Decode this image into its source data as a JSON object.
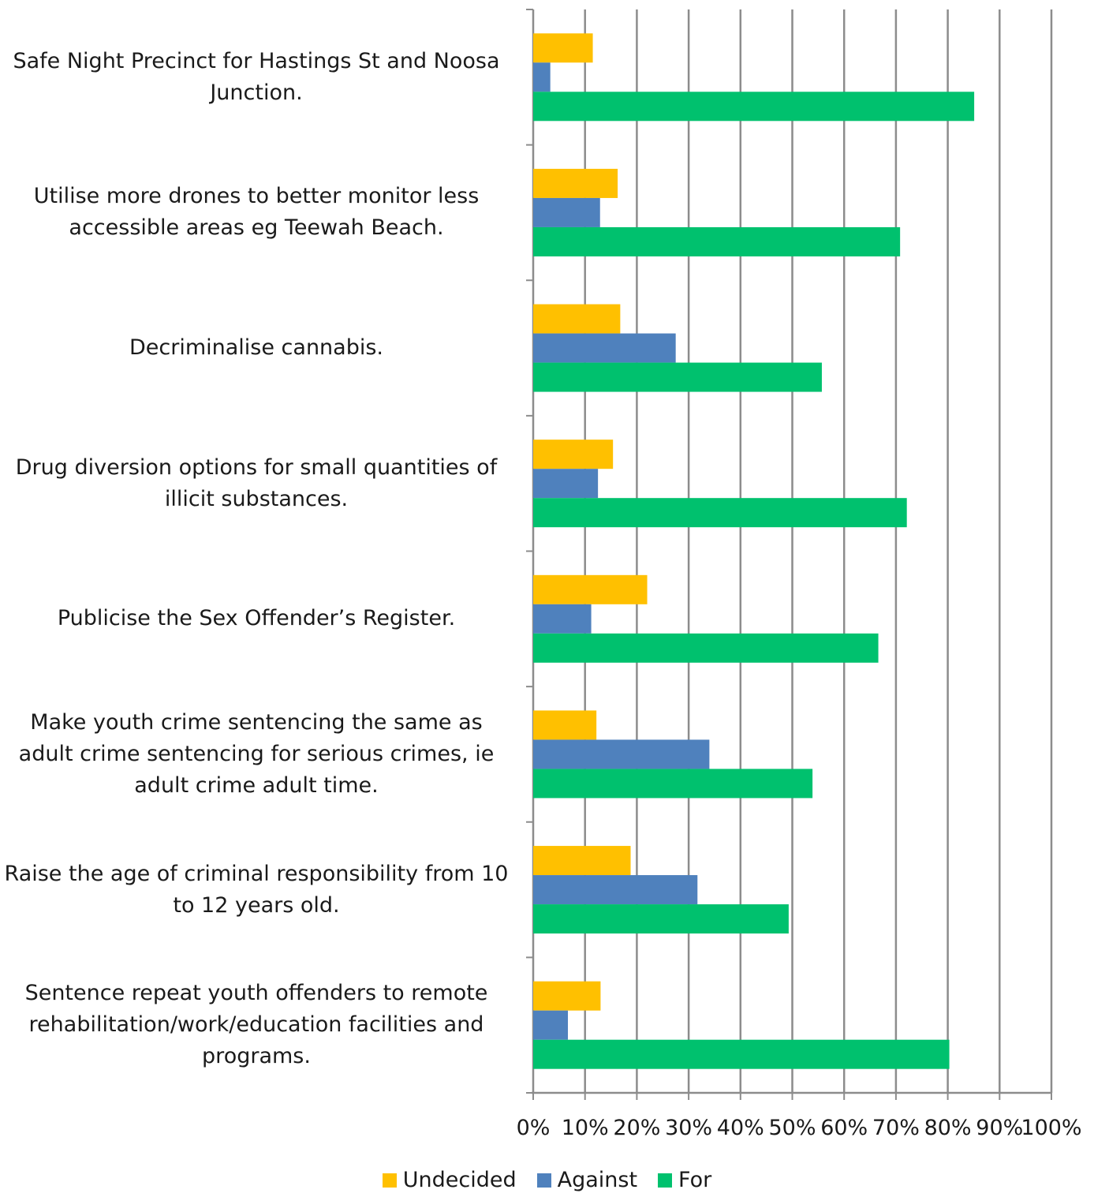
{
  "chart_data": {
    "type": "bar",
    "orientation": "horizontal",
    "categories": [
      "Safe Night Precinct for Hastings St and Noosa Junction.",
      "Utilise more drones to better monitor less accessible areas eg Teewah Beach.",
      "Decriminalise cannabis.",
      "Drug diversion options for small quantities of illicit substances.",
      "Publicise the Sex Offender’s Register.",
      "Make youth crime sentencing the same as adult crime sentencing for serious crimes, ie adult crime adult time.",
      "Raise the age of criminal responsibility from 10 to 12 years old.",
      "Sentence repeat youth offenders to remote rehabilitation/work/education facilities and programs."
    ],
    "series": [
      {
        "name": "Undecided",
        "color": "#FFC000",
        "values": [
          11.5,
          16.3,
          16.8,
          15.4,
          22.0,
          12.2,
          18.8,
          13.0
        ]
      },
      {
        "name": "Against",
        "color": "#4F81BD",
        "values": [
          3.3,
          12.9,
          27.5,
          12.5,
          11.2,
          34.0,
          31.7,
          6.7
        ]
      },
      {
        "name": "For",
        "color": "#00C16E",
        "values": [
          85.1,
          70.8,
          55.7,
          72.1,
          66.6,
          53.9,
          49.3,
          80.3
        ]
      }
    ],
    "xlim": [
      0,
      100
    ],
    "xticks": [
      "0%",
      "10%",
      "20%",
      "30%",
      "40%",
      "50%",
      "60%",
      "70%",
      "80%",
      "90%",
      "100%"
    ],
    "grid": true,
    "legend": "bottom",
    "title": "",
    "xlabel": "",
    "ylabel": ""
  }
}
